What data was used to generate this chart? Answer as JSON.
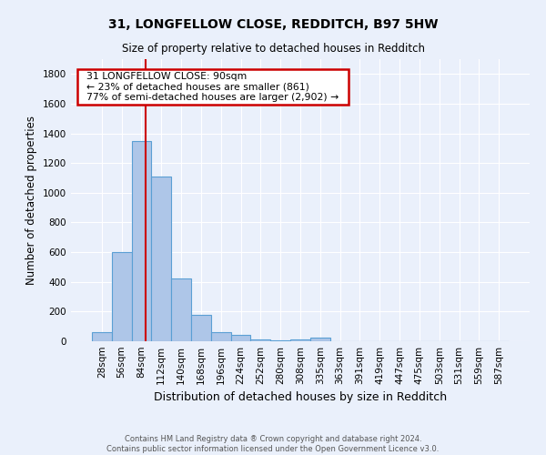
{
  "title_line1": "31, LONGFELLOW CLOSE, REDDITCH, B97 5HW",
  "title_line2": "Size of property relative to detached houses in Redditch",
  "xlabel": "Distribution of detached houses by size in Redditch",
  "ylabel": "Number of detached properties",
  "footnote": "Contains HM Land Registry data ® Crown copyright and database right 2024.\nContains public sector information licensed under the Open Government Licence v3.0.",
  "bar_labels": [
    "28sqm",
    "56sqm",
    "84sqm",
    "112sqm",
    "140sqm",
    "168sqm",
    "196sqm",
    "224sqm",
    "252sqm",
    "280sqm",
    "308sqm",
    "335sqm",
    "363sqm",
    "391sqm",
    "419sqm",
    "447sqm",
    "475sqm",
    "503sqm",
    "531sqm",
    "559sqm",
    "587sqm"
  ],
  "bar_values": [
    60,
    600,
    1350,
    1110,
    425,
    175,
    60,
    40,
    15,
    5,
    15,
    25,
    0,
    0,
    0,
    0,
    0,
    0,
    0,
    0,
    0
  ],
  "bar_color": "#aec6e8",
  "bar_edge_color": "#5a9fd4",
  "bar_edge_width": 0.8,
  "background_color": "#eaf0fb",
  "grid_color": "#ffffff",
  "annotation_text": "  31 LONGFELLOW CLOSE: 90sqm  \n  ← 23% of detached houses are smaller (861)  \n  77% of semi-detached houses are larger (2,902) →  ",
  "annotation_box_color": "#ffffff",
  "annotation_edge_color": "#cc0000",
  "ylim": [
    0,
    1900
  ],
  "yticks": [
    0,
    200,
    400,
    600,
    800,
    1000,
    1200,
    1400,
    1600,
    1800
  ]
}
